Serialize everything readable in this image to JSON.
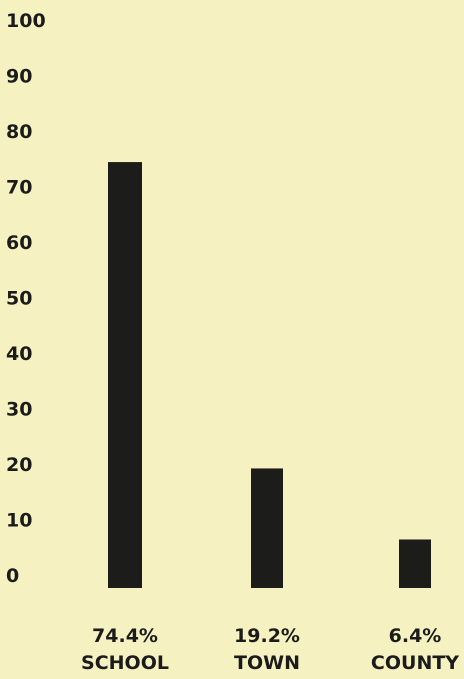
{
  "colors": {
    "background": "#f5f1c0",
    "bar": "#1c1c1a",
    "text": "#1b1b1b"
  },
  "chart_data": {
    "type": "bar",
    "title": "",
    "xlabel": "",
    "ylabel": "",
    "ylim": [
      0,
      100
    ],
    "yticks": [
      "0",
      "10",
      "20",
      "30",
      "40",
      "50",
      "60",
      "70",
      "80",
      "90",
      "100"
    ],
    "grid": false,
    "categories": [
      "SCHOOL",
      "TOWN",
      "COUNTY"
    ],
    "values": [
      74.4,
      19.2,
      6.4
    ],
    "value_labels": [
      "74.4%",
      "19.2%",
      "6.4%"
    ]
  }
}
